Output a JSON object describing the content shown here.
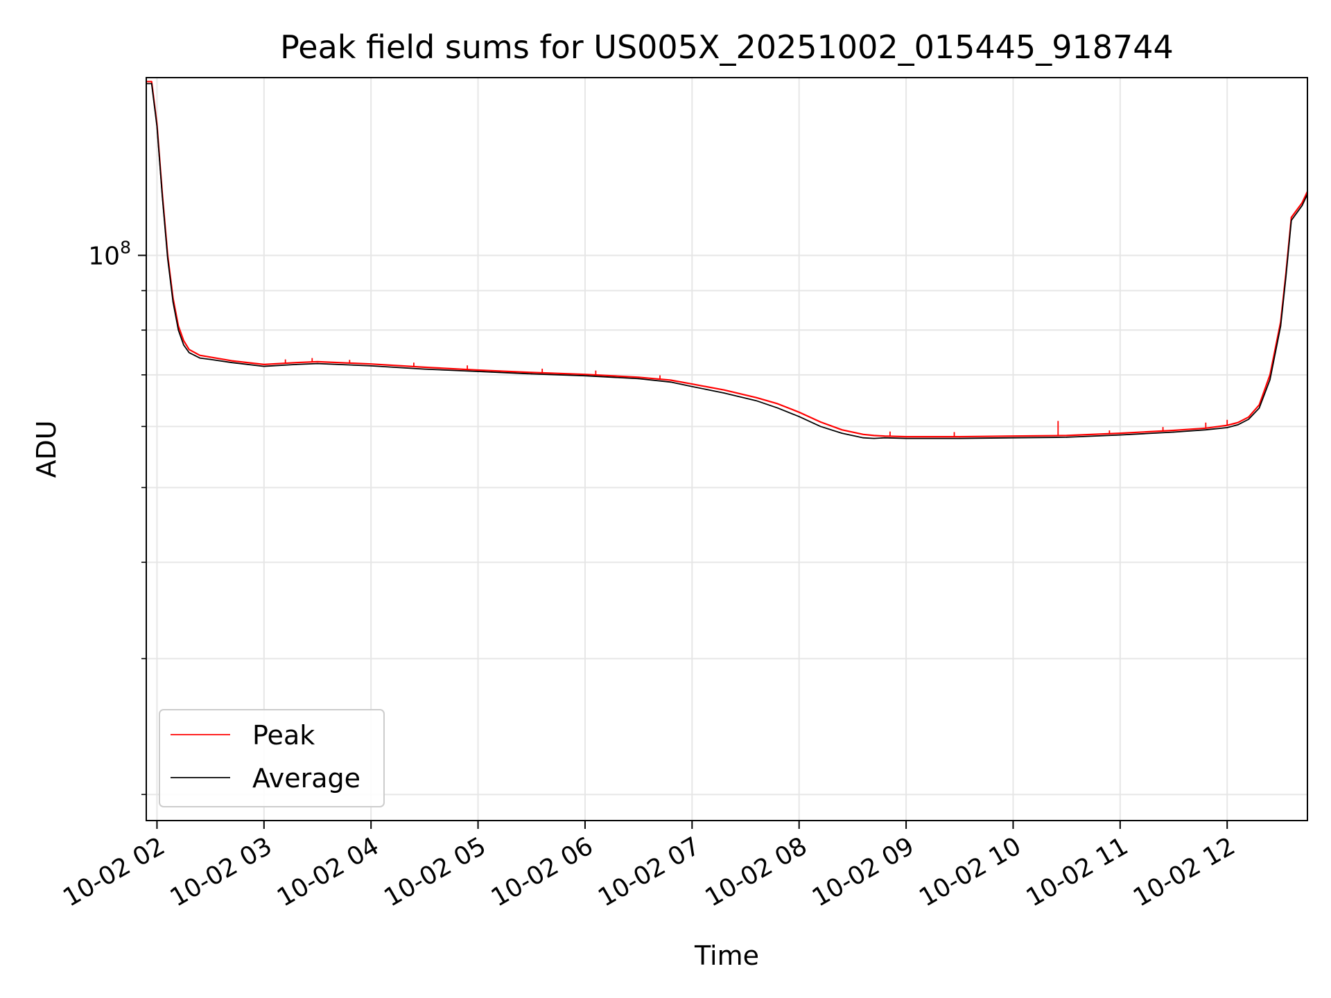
{
  "chart_data": {
    "type": "line",
    "title": "Peak field sums for US005X_20251002_015445_918744",
    "xlabel": "Time",
    "ylabel": "ADU",
    "yscale": "log",
    "grid": true,
    "legend_location": "lower-left",
    "x_unit": "hours",
    "xlim": [
      1.9,
      12.75
    ],
    "ylim": [
      18500000,
      170000000
    ],
    "x_ticks": [
      {
        "value": 2,
        "label": "10-02 02"
      },
      {
        "value": 3,
        "label": "10-02 03"
      },
      {
        "value": 4,
        "label": "10-02 04"
      },
      {
        "value": 5,
        "label": "10-02 05"
      },
      {
        "value": 6,
        "label": "10-02 06"
      },
      {
        "value": 7,
        "label": "10-02 07"
      },
      {
        "value": 8,
        "label": "10-02 08"
      },
      {
        "value": 9,
        "label": "10-02 09"
      },
      {
        "value": 10,
        "label": "10-02 10"
      },
      {
        "value": 11,
        "label": "10-02 11"
      },
      {
        "value": 12,
        "label": "10-02 12"
      }
    ],
    "y_major_ticks": [
      {
        "value": 100000000,
        "base": "10",
        "exponent": "8"
      }
    ],
    "y_minor_ticks": [
      20000000,
      30000000,
      40000000,
      50000000,
      60000000,
      70000000,
      80000000,
      90000000
    ],
    "series": [
      {
        "name": "Peak",
        "color": "#ff0000",
        "x": [
          1.9,
          1.95,
          2.0,
          2.05,
          2.1,
          2.15,
          2.2,
          2.25,
          2.3,
          2.4,
          2.5,
          2.7,
          3.0,
          3.3,
          3.5,
          4.0,
          4.5,
          5.0,
          5.5,
          6.0,
          6.5,
          6.8,
          7.0,
          7.3,
          7.6,
          7.8,
          8.0,
          8.2,
          8.4,
          8.6,
          8.7,
          8.8,
          9.0,
          9.5,
          10.0,
          10.5,
          11.0,
          11.5,
          11.8,
          12.0,
          12.1,
          12.2,
          12.3,
          12.4,
          12.5,
          12.55,
          12.6,
          12.7,
          12.75
        ],
        "y": [
          168000000,
          168000000,
          148000000,
          120000000,
          100000000,
          88000000,
          81000000,
          77500000,
          75500000,
          74200000,
          73800000,
          73000000,
          72200000,
          72600000,
          72800000,
          72300000,
          71600000,
          71000000,
          70500000,
          70100000,
          69500000,
          68900000,
          68100000,
          66900000,
          65400000,
          64200000,
          62600000,
          60800000,
          59400000,
          58600000,
          58400000,
          58300000,
          58200000,
          58200000,
          58300000,
          58400000,
          58800000,
          59300000,
          59700000,
          60200000,
          60700000,
          61700000,
          64000000,
          70000000,
          82000000,
          95000000,
          112000000,
          117000000,
          121000000
        ],
        "spikes": [
          {
            "x": 3.2,
            "y": 73300000
          },
          {
            "x": 3.45,
            "y": 73600000
          },
          {
            "x": 3.8,
            "y": 73200000
          },
          {
            "x": 4.4,
            "y": 72600000
          },
          {
            "x": 4.9,
            "y": 72000000
          },
          {
            "x": 5.6,
            "y": 71300000
          },
          {
            "x": 6.1,
            "y": 70900000
          },
          {
            "x": 6.7,
            "y": 69900000
          },
          {
            "x": 8.85,
            "y": 59100000
          },
          {
            "x": 9.45,
            "y": 59000000
          },
          {
            "x": 10.42,
            "y": 61000000
          },
          {
            "x": 10.9,
            "y": 59300000
          },
          {
            "x": 11.4,
            "y": 59900000
          },
          {
            "x": 11.8,
            "y": 60700000
          },
          {
            "x": 12.0,
            "y": 61200000
          }
        ]
      },
      {
        "name": "Average",
        "color": "#000000",
        "x": [
          1.9,
          1.95,
          2.0,
          2.05,
          2.1,
          2.15,
          2.2,
          2.25,
          2.3,
          2.4,
          2.5,
          2.7,
          3.0,
          3.3,
          3.5,
          4.0,
          4.5,
          5.0,
          5.5,
          6.0,
          6.5,
          6.8,
          7.0,
          7.3,
          7.6,
          7.8,
          8.0,
          8.2,
          8.4,
          8.6,
          8.7,
          8.8,
          9.0,
          9.5,
          10.0,
          10.5,
          11.0,
          11.5,
          11.8,
          12.0,
          12.1,
          12.2,
          12.3,
          12.4,
          12.5,
          12.55,
          12.6,
          12.7,
          12.75
        ],
        "y": [
          167000000,
          167000000,
          147000000,
          119000000,
          99000000,
          87000000,
          80000000,
          76500000,
          74800000,
          73600000,
          73300000,
          72600000,
          71800000,
          72200000,
          72400000,
          71900000,
          71200000,
          70700000,
          70200000,
          69800000,
          69200000,
          68500000,
          67600000,
          66300000,
          64800000,
          63400000,
          61800000,
          60000000,
          58800000,
          58000000,
          57900000,
          58000000,
          57900000,
          57900000,
          58000000,
          58100000,
          58500000,
          59000000,
          59400000,
          59800000,
          60300000,
          61300000,
          63400000,
          69000000,
          81000000,
          94000000,
          111000000,
          116000000,
          120000000
        ]
      }
    ]
  }
}
